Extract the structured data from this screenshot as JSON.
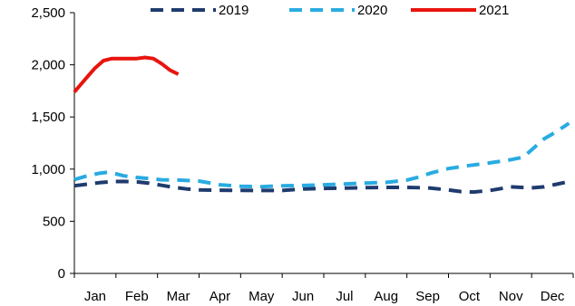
{
  "chart_data": {
    "type": "line",
    "title": "",
    "xlabel": "",
    "ylabel": "",
    "ylim": [
      0,
      2500
    ],
    "yticks": [
      0,
      500,
      1000,
      1500,
      2000,
      2500
    ],
    "ytick_labels": [
      "0",
      "500",
      "1,000",
      "1,500",
      "2,000",
      "2,500"
    ],
    "categories": [
      "Jan",
      "Feb",
      "Mar",
      "Apr",
      "May",
      "Jun",
      "Jul",
      "Aug",
      "Sep",
      "Oct",
      "Nov",
      "Dec"
    ],
    "grid": false,
    "legend_position": "top",
    "series": [
      {
        "name": "2019",
        "color": "#1f3b6e",
        "dash": "dashed",
        "x": [
          0.0,
          0.3,
          0.6,
          0.9,
          1.2,
          1.5,
          1.8,
          2.1,
          2.4,
          2.7,
          3.0,
          3.5,
          4.0,
          4.5,
          5.0,
          5.5,
          6.0,
          6.5,
          7.0,
          7.5,
          8.0,
          8.5,
          9.0,
          9.3,
          9.6,
          10.0,
          10.5,
          11.0,
          11.3,
          11.6,
          11.9
        ],
        "y": [
          840,
          855,
          870,
          880,
          882,
          878,
          865,
          845,
          825,
          810,
          800,
          798,
          796,
          795,
          795,
          810,
          815,
          818,
          822,
          825,
          825,
          820,
          800,
          785,
          780,
          795,
          830,
          820,
          830,
          855,
          880
        ]
      },
      {
        "name": "2020",
        "color": "#29abe2",
        "dash": "dashed",
        "x": [
          0.0,
          0.3,
          0.6,
          0.8,
          1.0,
          1.2,
          1.5,
          1.8,
          2.1,
          2.5,
          3.0,
          3.5,
          4.0,
          4.5,
          5.0,
          5.5,
          6.0,
          6.5,
          7.0,
          7.5,
          8.0,
          8.3,
          8.6,
          9.0,
          9.5,
          10.0,
          10.5,
          10.8,
          11.0,
          11.3,
          11.6,
          11.9
        ],
        "y": [
          900,
          935,
          960,
          970,
          955,
          935,
          920,
          910,
          898,
          895,
          885,
          850,
          835,
          832,
          840,
          843,
          850,
          858,
          866,
          872,
          895,
          925,
          965,
          1005,
          1035,
          1060,
          1090,
          1115,
          1185,
          1290,
          1360,
          1440
        ]
      },
      {
        "name": "2021",
        "color": "#e8140f",
        "dash": "solid",
        "x": [
          0.0,
          0.15,
          0.3,
          0.5,
          0.7,
          0.9,
          1.2,
          1.5,
          1.7,
          1.9,
          2.1,
          2.3,
          2.5
        ],
        "y": [
          1740,
          1810,
          1880,
          1970,
          2040,
          2060,
          2060,
          2060,
          2070,
          2060,
          2010,
          1950,
          1910
        ]
      }
    ]
  }
}
